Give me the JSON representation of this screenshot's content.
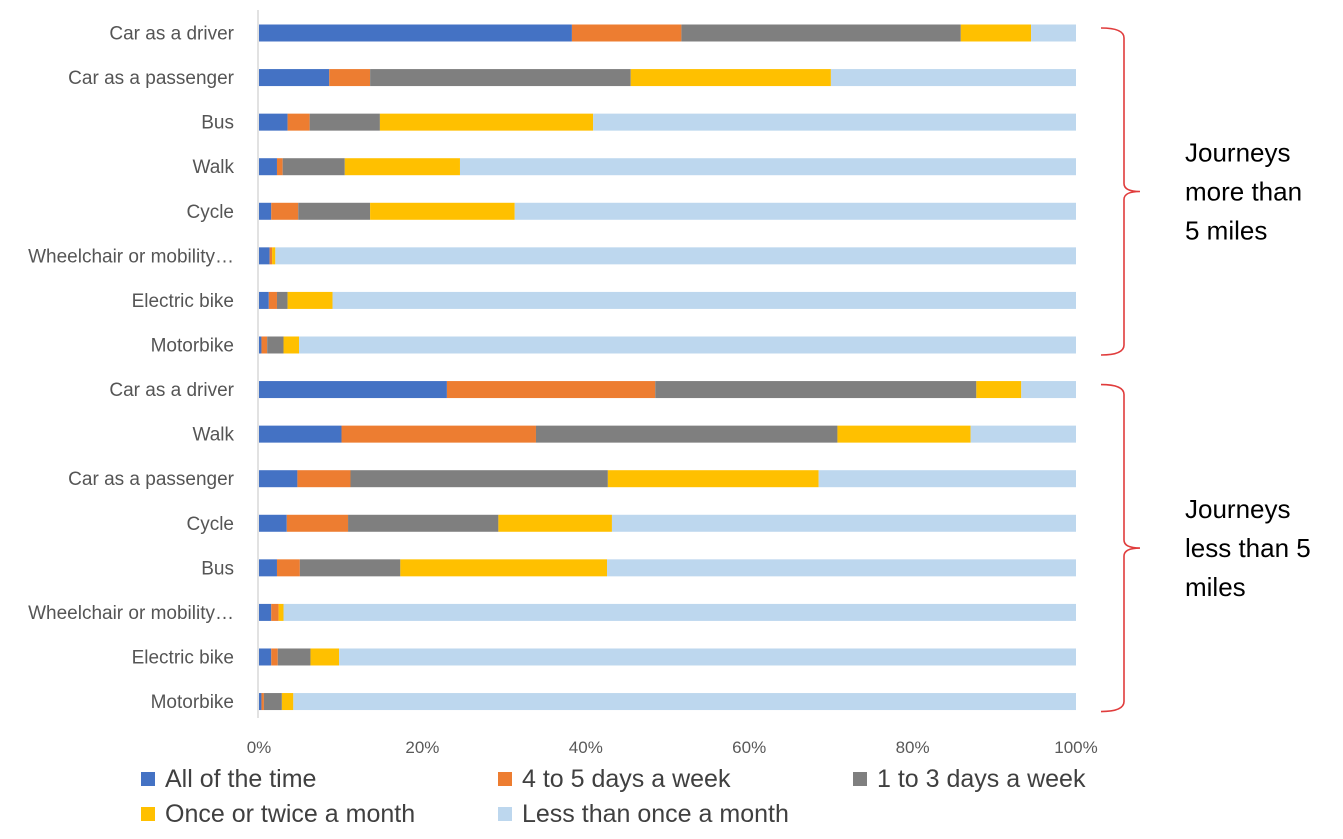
{
  "chart_data": {
    "type": "bar",
    "orientation": "horizontal",
    "stacked": "percent",
    "categories": [
      "Car as a driver",
      "Car as a passenger",
      "Bus",
      "Walk",
      "Cycle",
      "Wheelchair or mobility…",
      "Electric bike",
      "Motorbike",
      "Car as a driver",
      "Walk",
      "Car as a passenger",
      "Cycle",
      "Bus",
      "Wheelchair or mobility…",
      "Electric bike",
      "Motorbike"
    ],
    "series": [
      {
        "name": "All of the time",
        "color": "#4472C4",
        "values": [
          38.3,
          8.6,
          3.5,
          2.2,
          1.5,
          1.3,
          1.2,
          0.3,
          23.0,
          10.1,
          4.7,
          3.4,
          2.2,
          1.5,
          1.5,
          0.3
        ]
      },
      {
        "name": "4 to 5 days a week",
        "color": "#ED7D31",
        "values": [
          13.4,
          5.0,
          2.7,
          0.7,
          3.3,
          0.3,
          1.0,
          0.7,
          25.5,
          23.8,
          6.5,
          7.5,
          2.8,
          0.9,
          0.8,
          0.3
        ]
      },
      {
        "name": "1 to 3 days a week",
        "color": "#7F7F7F",
        "values": [
          34.2,
          31.9,
          8.6,
          7.6,
          8.8,
          0.0,
          1.3,
          2.0,
          39.3,
          36.9,
          31.5,
          18.4,
          12.3,
          0.0,
          4.0,
          2.2
        ]
      },
      {
        "name": "Once or twice a month",
        "color": "#FFC000",
        "values": [
          8.6,
          24.5,
          26.1,
          14.1,
          17.7,
          0.4,
          5.5,
          1.9,
          5.5,
          16.3,
          25.8,
          13.9,
          25.3,
          0.6,
          3.5,
          1.4
        ]
      },
      {
        "name": "Less than once a month",
        "color": "#BDD7EE",
        "values": [
          5.5,
          30.0,
          59.1,
          75.4,
          68.7,
          98.0,
          91.0,
          95.1,
          6.7,
          12.9,
          31.5,
          56.8,
          57.4,
          97.0,
          90.2,
          95.8
        ]
      }
    ],
    "xlim": [
      0,
      100
    ],
    "x_ticks": [
      "0%",
      "20%",
      "40%",
      "60%",
      "80%",
      "100%"
    ],
    "groups": [
      {
        "label_lines": [
          "Journeys",
          "more than",
          "5 miles"
        ],
        "first_index": 0,
        "last_index": 7
      },
      {
        "label_lines": [
          "Journeys",
          "less than 5",
          "miles"
        ],
        "first_index": 8,
        "last_index": 15
      }
    ],
    "group_bracket_color": "#E03C3C",
    "legend_position": "bottom",
    "grid": false,
    "axis_color": "#D9D9D9"
  }
}
